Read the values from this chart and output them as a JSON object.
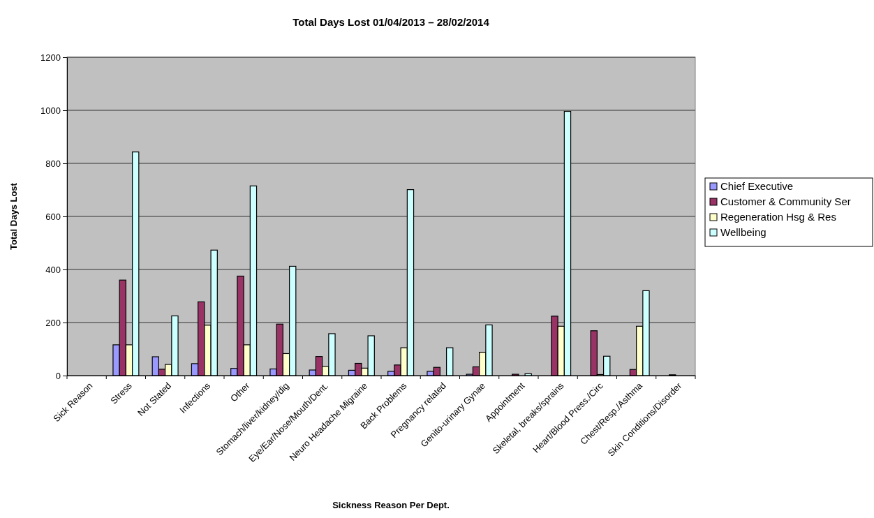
{
  "chart_data": {
    "type": "bar",
    "title": "Total Days Lost 01/04/2013 – 28/02/2014",
    "xlabel": "Sickness Reason Per Dept.",
    "ylabel": "Total Days Lost",
    "categories": [
      "Sick Reason",
      "Stress",
      "Not Stated",
      "Infections",
      "Other",
      "Stomach/liver/kidney/dig",
      "Eye/Ear/Nose/Mouth/Dent.",
      "Neuro Headache Migraine",
      "Back Problems",
      "Pregnancy related",
      "Genito-urinary Gynae",
      "Appointment",
      "Skeletal, breaks/sprains",
      "Heart/Blood Press./Circ",
      "Chest/Resp./Asthma",
      "Skin Conditions/Disorder"
    ],
    "series": [
      {
        "name": "Chief Executive",
        "color": "#9999ff",
        "values": [
          0,
          116,
          71,
          45,
          27,
          25,
          21,
          20,
          16,
          16,
          5,
          0,
          null,
          null,
          null,
          0
        ]
      },
      {
        "name": "Customer & Community Ser",
        "color": "#993366",
        "values": [
          0,
          360,
          24,
          278,
          375,
          194,
          72,
          46,
          40,
          31,
          33,
          5,
          224,
          169,
          23,
          3
        ]
      },
      {
        "name": "Regeneration Hsg & Res",
        "color": "#ffffcc",
        "values": [
          0,
          116,
          42,
          190,
          116,
          83,
          35,
          28,
          105,
          null,
          88,
          0,
          186,
          4,
          186,
          0
        ]
      },
      {
        "name": "Wellbeing",
        "color": "#ccffff",
        "values": [
          0,
          843,
          225,
          473,
          715,
          412,
          158,
          150,
          701,
          105,
          191,
          7,
          996,
          73,
          320,
          0
        ]
      }
    ],
    "ylim": [
      0,
      1200
    ],
    "yticks": [
      0,
      200,
      400,
      600,
      800,
      1000,
      1200
    ],
    "grid": "y",
    "legend": "right"
  }
}
